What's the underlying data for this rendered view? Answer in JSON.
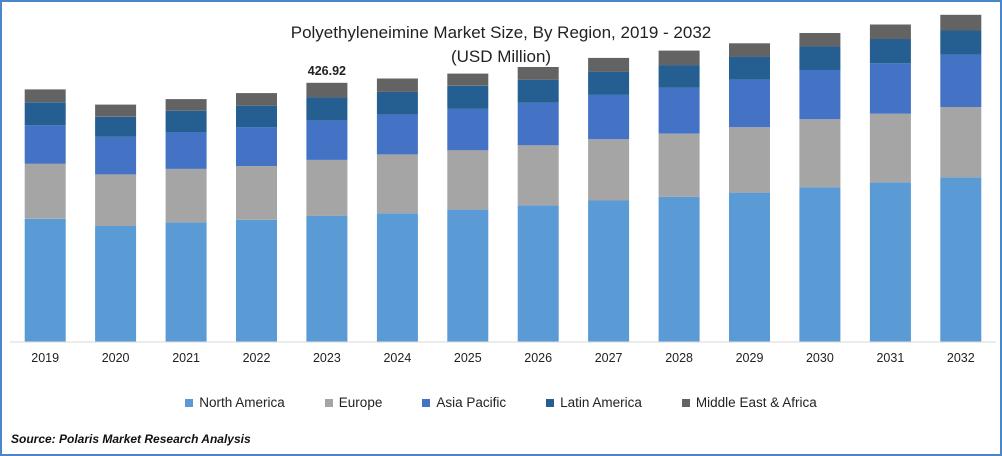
{
  "chart_data": {
    "type": "bar",
    "stacked": true,
    "title": "Polyethyleneimine Market Size, By Region, 2019 - 2032",
    "subtitle": "(USD Million)",
    "categories": [
      "2019",
      "2020",
      "2021",
      "2022",
      "2023",
      "2024",
      "2025",
      "2026",
      "2027",
      "2028",
      "2029",
      "2030",
      "2031",
      "2032"
    ],
    "series": [
      {
        "name": "North America",
        "color": "#5b9bd5",
        "values": [
          203,
          191,
          197,
          201,
          208,
          212,
          218,
          225,
          233,
          239,
          246,
          255,
          263,
          271
        ]
      },
      {
        "name": "Europe",
        "color": "#a5a5a5",
        "values": [
          91,
          85,
          88,
          89,
          92,
          97,
          98,
          99,
          101,
          104,
          108,
          112,
          113,
          116
        ]
      },
      {
        "name": "Asia Pacific",
        "color": "#4472c4",
        "values": [
          63,
          62,
          61,
          64,
          65,
          66,
          68,
          70,
          73,
          76,
          78,
          81,
          83,
          86
        ]
      },
      {
        "name": "Latin America",
        "color": "#255e91",
        "values": [
          38,
          33,
          35,
          35,
          38,
          37,
          38,
          38,
          38,
          37,
          38,
          39,
          40,
          40
        ]
      },
      {
        "name": "Middle East & Africa",
        "color": "#636363",
        "values": [
          21,
          20,
          19,
          21,
          24,
          22,
          20,
          21,
          23,
          24,
          22,
          22,
          24,
          26
        ]
      }
    ],
    "annotations": [
      {
        "category": "2023",
        "label": "426.92"
      }
    ],
    "ylim": [
      0,
      560
    ],
    "show_y_axis": false,
    "grid": false,
    "legend_position": "bottom"
  },
  "source": "Source: Polaris Market Research Analysis"
}
